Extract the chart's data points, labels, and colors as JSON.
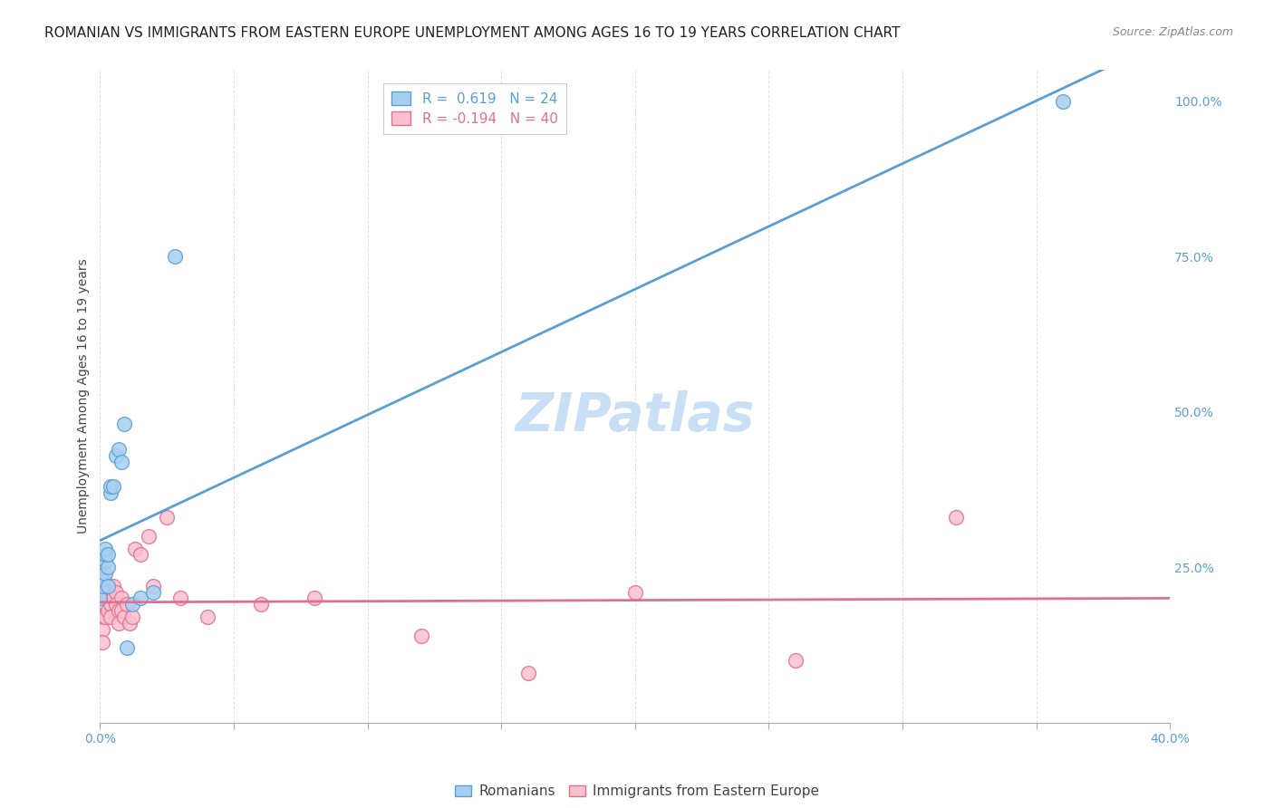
{
  "title": "ROMANIAN VS IMMIGRANTS FROM EASTERN EUROPE UNEMPLOYMENT AMONG AGES 16 TO 19 YEARS CORRELATION CHART",
  "source": "Source: ZipAtlas.com",
  "ylabel": "Unemployment Among Ages 16 to 19 years",
  "watermark": "ZIPatlas",
  "romanians_x": [
    0.0,
    0.001,
    0.001,
    0.001,
    0.002,
    0.002,
    0.002,
    0.002,
    0.003,
    0.003,
    0.003,
    0.004,
    0.004,
    0.005,
    0.006,
    0.007,
    0.008,
    0.009,
    0.01,
    0.012,
    0.015,
    0.02,
    0.028,
    0.36
  ],
  "romanians_y": [
    0.2,
    0.22,
    0.23,
    0.25,
    0.24,
    0.26,
    0.27,
    0.28,
    0.22,
    0.25,
    0.27,
    0.37,
    0.38,
    0.38,
    0.43,
    0.44,
    0.42,
    0.48,
    0.12,
    0.19,
    0.2,
    0.21,
    0.75,
    1.0
  ],
  "romanians_R": 0.619,
  "romanians_N": 24,
  "romanians_color": "#a8cff0",
  "romanians_edge_color": "#5a9fd4",
  "romanians_line_color": "#5a9fd4",
  "immigrants_x": [
    0.0,
    0.0,
    0.001,
    0.001,
    0.001,
    0.001,
    0.002,
    0.002,
    0.002,
    0.003,
    0.003,
    0.003,
    0.004,
    0.004,
    0.005,
    0.005,
    0.006,
    0.006,
    0.007,
    0.007,
    0.008,
    0.008,
    0.009,
    0.01,
    0.011,
    0.012,
    0.013,
    0.015,
    0.018,
    0.02,
    0.025,
    0.03,
    0.04,
    0.06,
    0.08,
    0.12,
    0.16,
    0.2,
    0.26,
    0.32
  ],
  "immigrants_y": [
    0.19,
    0.17,
    0.18,
    0.17,
    0.15,
    0.13,
    0.21,
    0.19,
    0.17,
    0.22,
    0.2,
    0.18,
    0.19,
    0.17,
    0.22,
    0.2,
    0.21,
    0.19,
    0.18,
    0.16,
    0.2,
    0.18,
    0.17,
    0.19,
    0.16,
    0.17,
    0.28,
    0.27,
    0.3,
    0.22,
    0.33,
    0.2,
    0.17,
    0.19,
    0.2,
    0.14,
    0.08,
    0.21,
    0.1,
    0.33
  ],
  "immigrants_R": -0.194,
  "immigrants_N": 40,
  "immigrants_color": "#f9c0ce",
  "immigrants_edge_color": "#e07090",
  "immigrants_line_color": "#e07090",
  "xlim": [
    0.0,
    0.4
  ],
  "ylim": [
    0.0,
    1.05
  ],
  "xticks": [
    0.0,
    0.05,
    0.1,
    0.15,
    0.2,
    0.25,
    0.3,
    0.35,
    0.4
  ],
  "xticklabels": [
    "0.0%",
    "",
    "",
    "",
    "",
    "",
    "",
    "",
    "40.0%"
  ],
  "yticks_right": [
    0.25,
    0.5,
    0.75,
    1.0
  ],
  "yticklabels_right": [
    "25.0%",
    "50.0%",
    "75.0%",
    "100.0%"
  ],
  "legend_label_romanians": "Romanians",
  "legend_label_immigrants": "Immigrants from Eastern Europe",
  "title_fontsize": 11,
  "source_fontsize": 9,
  "label_fontsize": 10,
  "legend_fontsize": 11,
  "tick_fontsize": 10,
  "watermark_fontsize": 42,
  "watermark_color": "#c8dff5",
  "watermark_alpha": 1.0,
  "background_color": "#ffffff",
  "grid_color": "#cccccc",
  "tick_color": "#5a9fd4",
  "axis_color": "#aaaaaa"
}
